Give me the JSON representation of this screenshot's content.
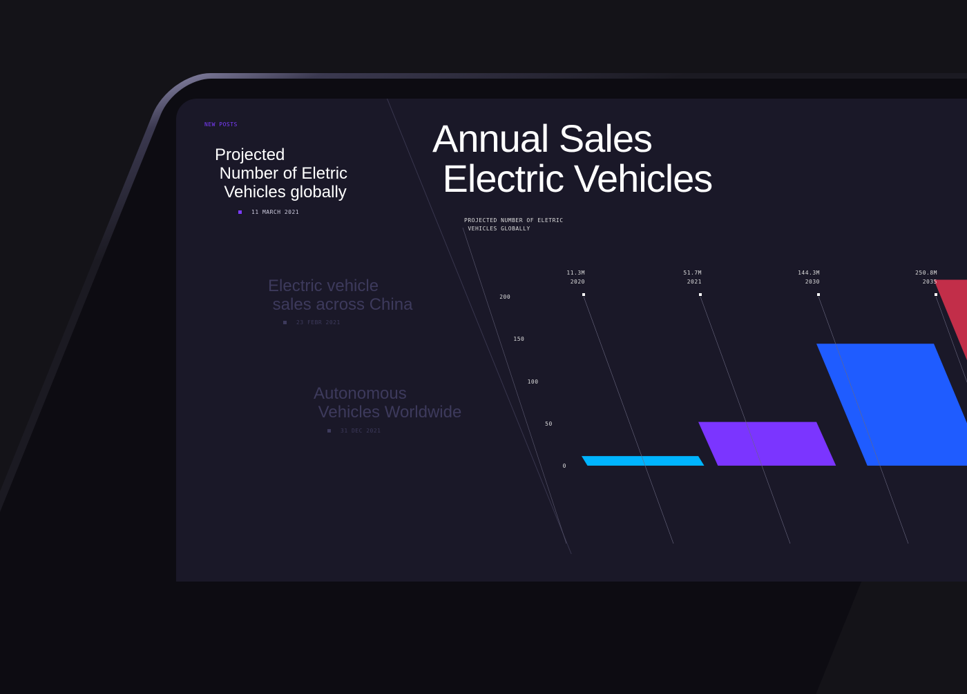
{
  "sidebar": {
    "section_label": "NEW POSTS",
    "posts": [
      {
        "title": "Projected\n Number of Eletric\n  Vehicles globally",
        "date": "11 MARCH 2021",
        "active": true
      },
      {
        "title": "Electric vehicle\n sales across China",
        "date": "23 FEBR 2021",
        "active": false
      },
      {
        "title": "Autonomous\n Vehicles Worldwide",
        "date": "31 DEC 2021",
        "active": false
      }
    ]
  },
  "main": {
    "title": "Annual Sales\n Electric Vehicles",
    "subtitle": "PROJECTED NUMBER OF ELETRIC\n VEHICLES GLOBALLY"
  },
  "colors": {
    "accent": "#7b3cff",
    "bar_2020": "#00b4ff",
    "bar_2021": "#7b35ff",
    "bar_2030": "#1f5cff",
    "bar_2035": "#e0334f"
  },
  "chart_data": {
    "type": "bar",
    "categories": [
      "2020",
      "2021",
      "2030",
      "2035"
    ],
    "value_labels": [
      "11.3M",
      "51.7M",
      "144.3M",
      "250.8M"
    ],
    "values": [
      11.3,
      51.7,
      144.3,
      250.8
    ],
    "yticks": [
      "0",
      "50",
      "100",
      "150",
      "200"
    ],
    "ylim": [
      0,
      200
    ]
  }
}
